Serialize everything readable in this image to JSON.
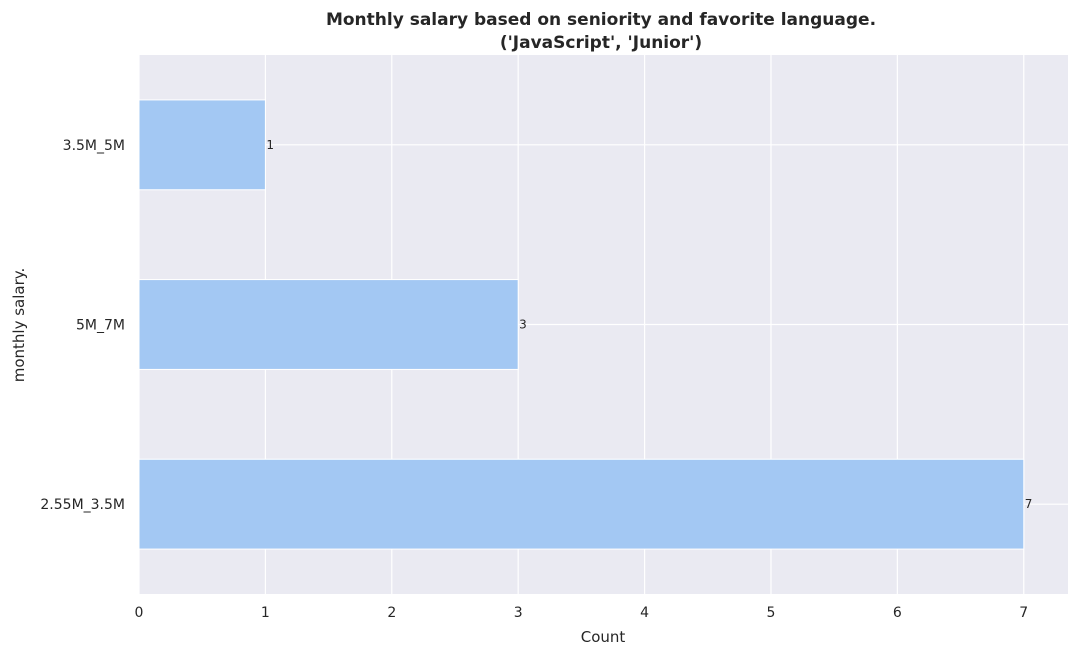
{
  "chart_data": {
    "type": "bar",
    "orientation": "horizontal",
    "title": "Monthly salary based on seniority and favorite language.",
    "subtitle": "('JavaScript', 'Junior')",
    "xlabel": "Count",
    "ylabel": "monthly salary.",
    "categories": [
      "3.5M_5M",
      "5M_7M",
      "2.55M_3.5M"
    ],
    "values": [
      1,
      3,
      7
    ],
    "xlim": [
      0,
      7.35
    ],
    "xticks": [
      0,
      1,
      2,
      3,
      4,
      5,
      6,
      7
    ],
    "grid": true,
    "legend": "none",
    "colors": {
      "bar": "#a3c8f3",
      "background": "#eaeaf2",
      "grid": "#ffffff",
      "text": "#262626"
    }
  }
}
